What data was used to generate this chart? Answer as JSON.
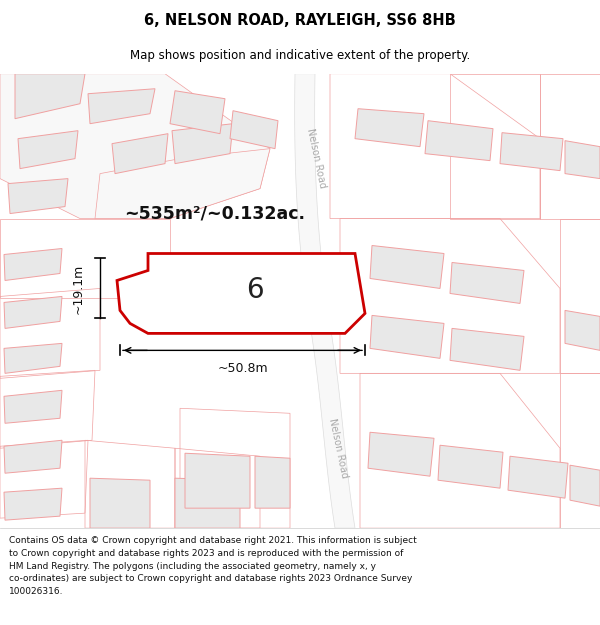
{
  "title": "6, NELSON ROAD, RAYLEIGH, SS6 8HB",
  "subtitle": "Map shows position and indicative extent of the property.",
  "area_text": "~535m²/~0.132ac.",
  "property_number": "6",
  "dim_width": "~50.8m",
  "dim_height": "~19.1m",
  "footer_text": "Contains OS data © Crown copyright and database right 2021. This information is subject\nto Crown copyright and database rights 2023 and is reproduced with the permission of\nHM Land Registry. The polygons (including the associated geometry, namely x, y\nco-ordinates) are subject to Crown copyright and database rights 2023 Ordnance Survey\n100026316.",
  "map_bg": "#ffffff",
  "building_fill": "#e8e8e8",
  "building_edge": "#f0a0a0",
  "plot_edge": "#f0a0a0",
  "property_fill": "#ffffff",
  "property_edge": "#cc0000",
  "road_color": "#ffffff",
  "road_label_color": "#aaaaaa",
  "road_edge": "#dddddd"
}
